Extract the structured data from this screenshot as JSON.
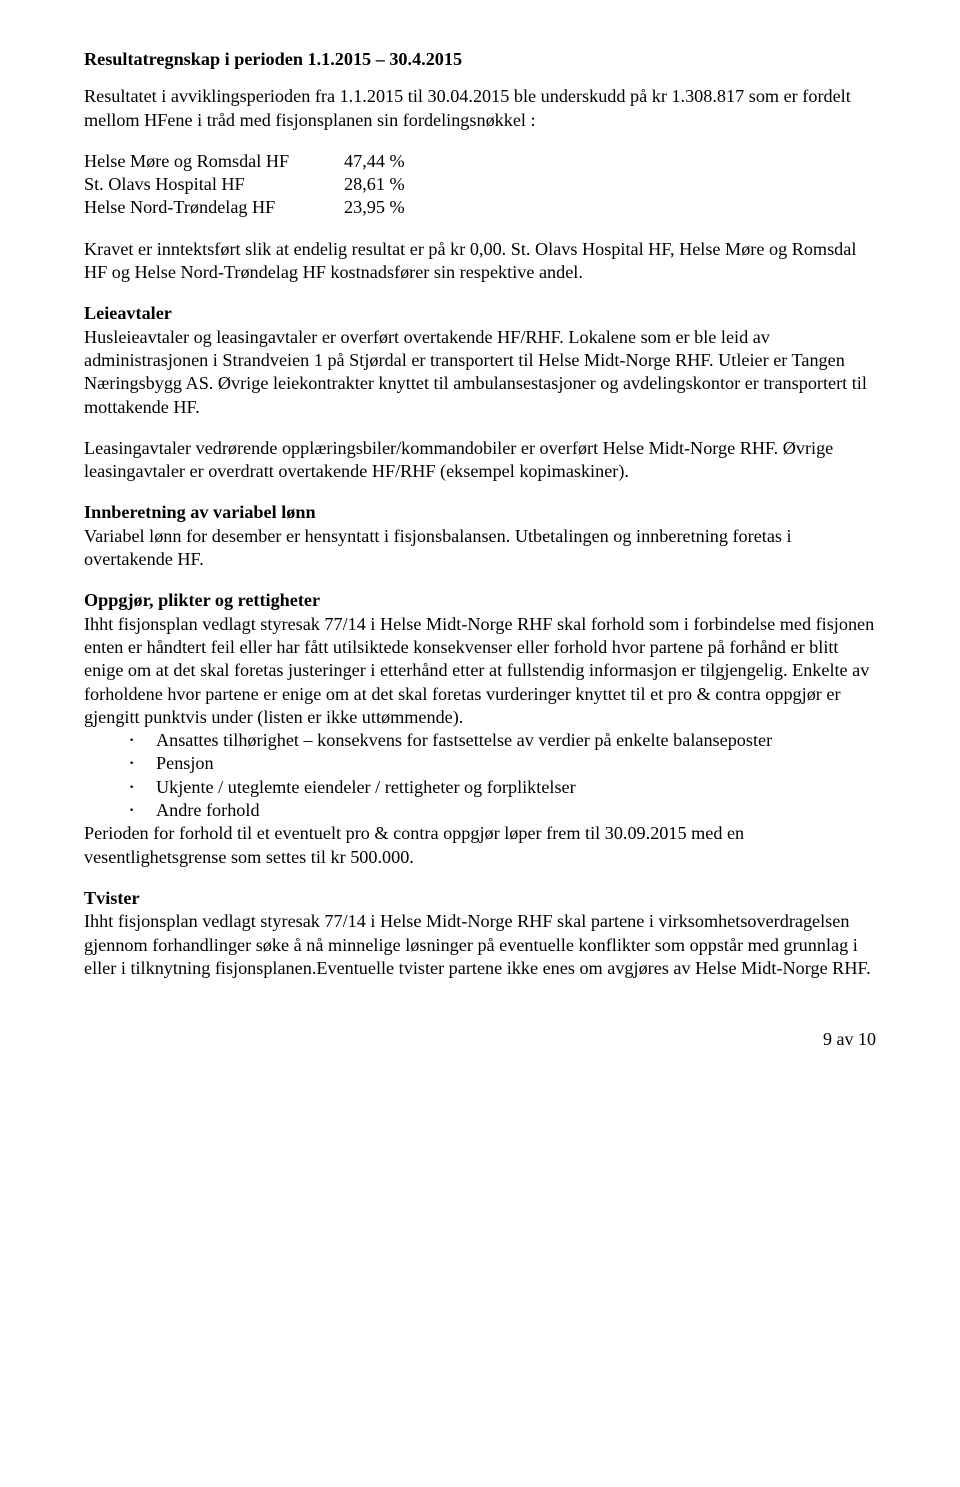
{
  "heading1": "Resultatregnskap i perioden 1.1.2015 – 30.4.2015",
  "intro": "Resultatet i avviklingsperioden fra 1.1.2015 til 30.04.2015 ble underskudd på kr 1.308.817 som er fordelt mellom HFene i tråd med fisjonsplanen sin fordelingsnøkkel :",
  "alloc": {
    "rows": [
      {
        "name": "Helse Møre og Romsdal HF",
        "pct": "47,44 %"
      },
      {
        "name": "St. Olavs Hospital HF",
        "pct": "28,61 %"
      },
      {
        "name": "Helse Nord-Trøndelag HF",
        "pct": "23,95 %"
      }
    ]
  },
  "para_kravet": "Kravet er inntektsført slik at endelig resultat er på kr 0,00. St. Olavs Hospital HF, Helse Møre og Romsdal HF og Helse Nord-Trøndelag HF kostnadsfører sin respektive andel.",
  "leieavtaler_heading": "Leieavtaler",
  "leieavtaler_body": "Husleieavtaler og leasingavtaler er overført overtakende HF/RHF. Lokalene som er ble leid av administrasjonen i Strandveien 1 på Stjørdal er transportert til Helse Midt-Norge RHF. Utleier er Tangen Næringsbygg AS. Øvrige leiekontrakter knyttet til ambulansestasjoner og avdelingskontor er transportert til mottakende HF.",
  "leasing_para": "Leasingavtaler vedrørende opplæringsbiler/kommandobiler er overført Helse Midt-Norge RHF. Øvrige leasingavtaler er overdratt overtakende HF/RHF (eksempel kopimaskiner).",
  "innberetning_heading": "Innberetning av variabel lønn",
  "innberetning_body": "Variabel lønn for desember er hensyntatt i fisjonsbalansen. Utbetalingen og innberetning foretas i overtakende HF.",
  "oppgjor_heading": "Oppgjør, plikter og rettigheter",
  "oppgjor_body": "Ihht fisjonsplan vedlagt styresak 77/14 i Helse Midt-Norge RHF skal forhold som i forbindelse med fisjonen enten er håndtert feil eller har fått utilsiktede konsekvenser eller forhold hvor partene på forhånd er blitt enige om at det skal foretas justeringer i etterhånd etter at fullstendig informasjon er tilgjengelig. Enkelte av forholdene hvor partene er enige om at det skal foretas vurderinger knyttet til et pro & contra oppgjør er gjengitt punktvis under (listen er ikke uttømmende).",
  "bullets": [
    "Ansattes tilhørighet – konsekvens for fastsettelse av verdier på enkelte balanseposter",
    "Pensjon",
    "Ukjente / uteglemte eiendeler / rettigheter og forpliktelser",
    "Andre forhold"
  ],
  "oppgjor_tail": "Perioden for forhold til et eventuelt pro & contra oppgjør løper frem til 30.09.2015 med en vesentlighetsgrense som settes til kr 500.000.",
  "tvister_heading": "Tvister",
  "tvister_body": "Ihht fisjonsplan vedlagt styresak 77/14 i Helse Midt-Norge RHF skal partene i virksomhetsoverdragelsen gjennom forhandlinger søke å nå minnelige løsninger på eventuelle konflikter som oppstår med grunnlag i eller i tilknytning fisjonsplanen.Eventuelle tvister partene ikke enes om avgjøres av Helse Midt-Norge RHF.",
  "page_footer": "9 av 10"
}
